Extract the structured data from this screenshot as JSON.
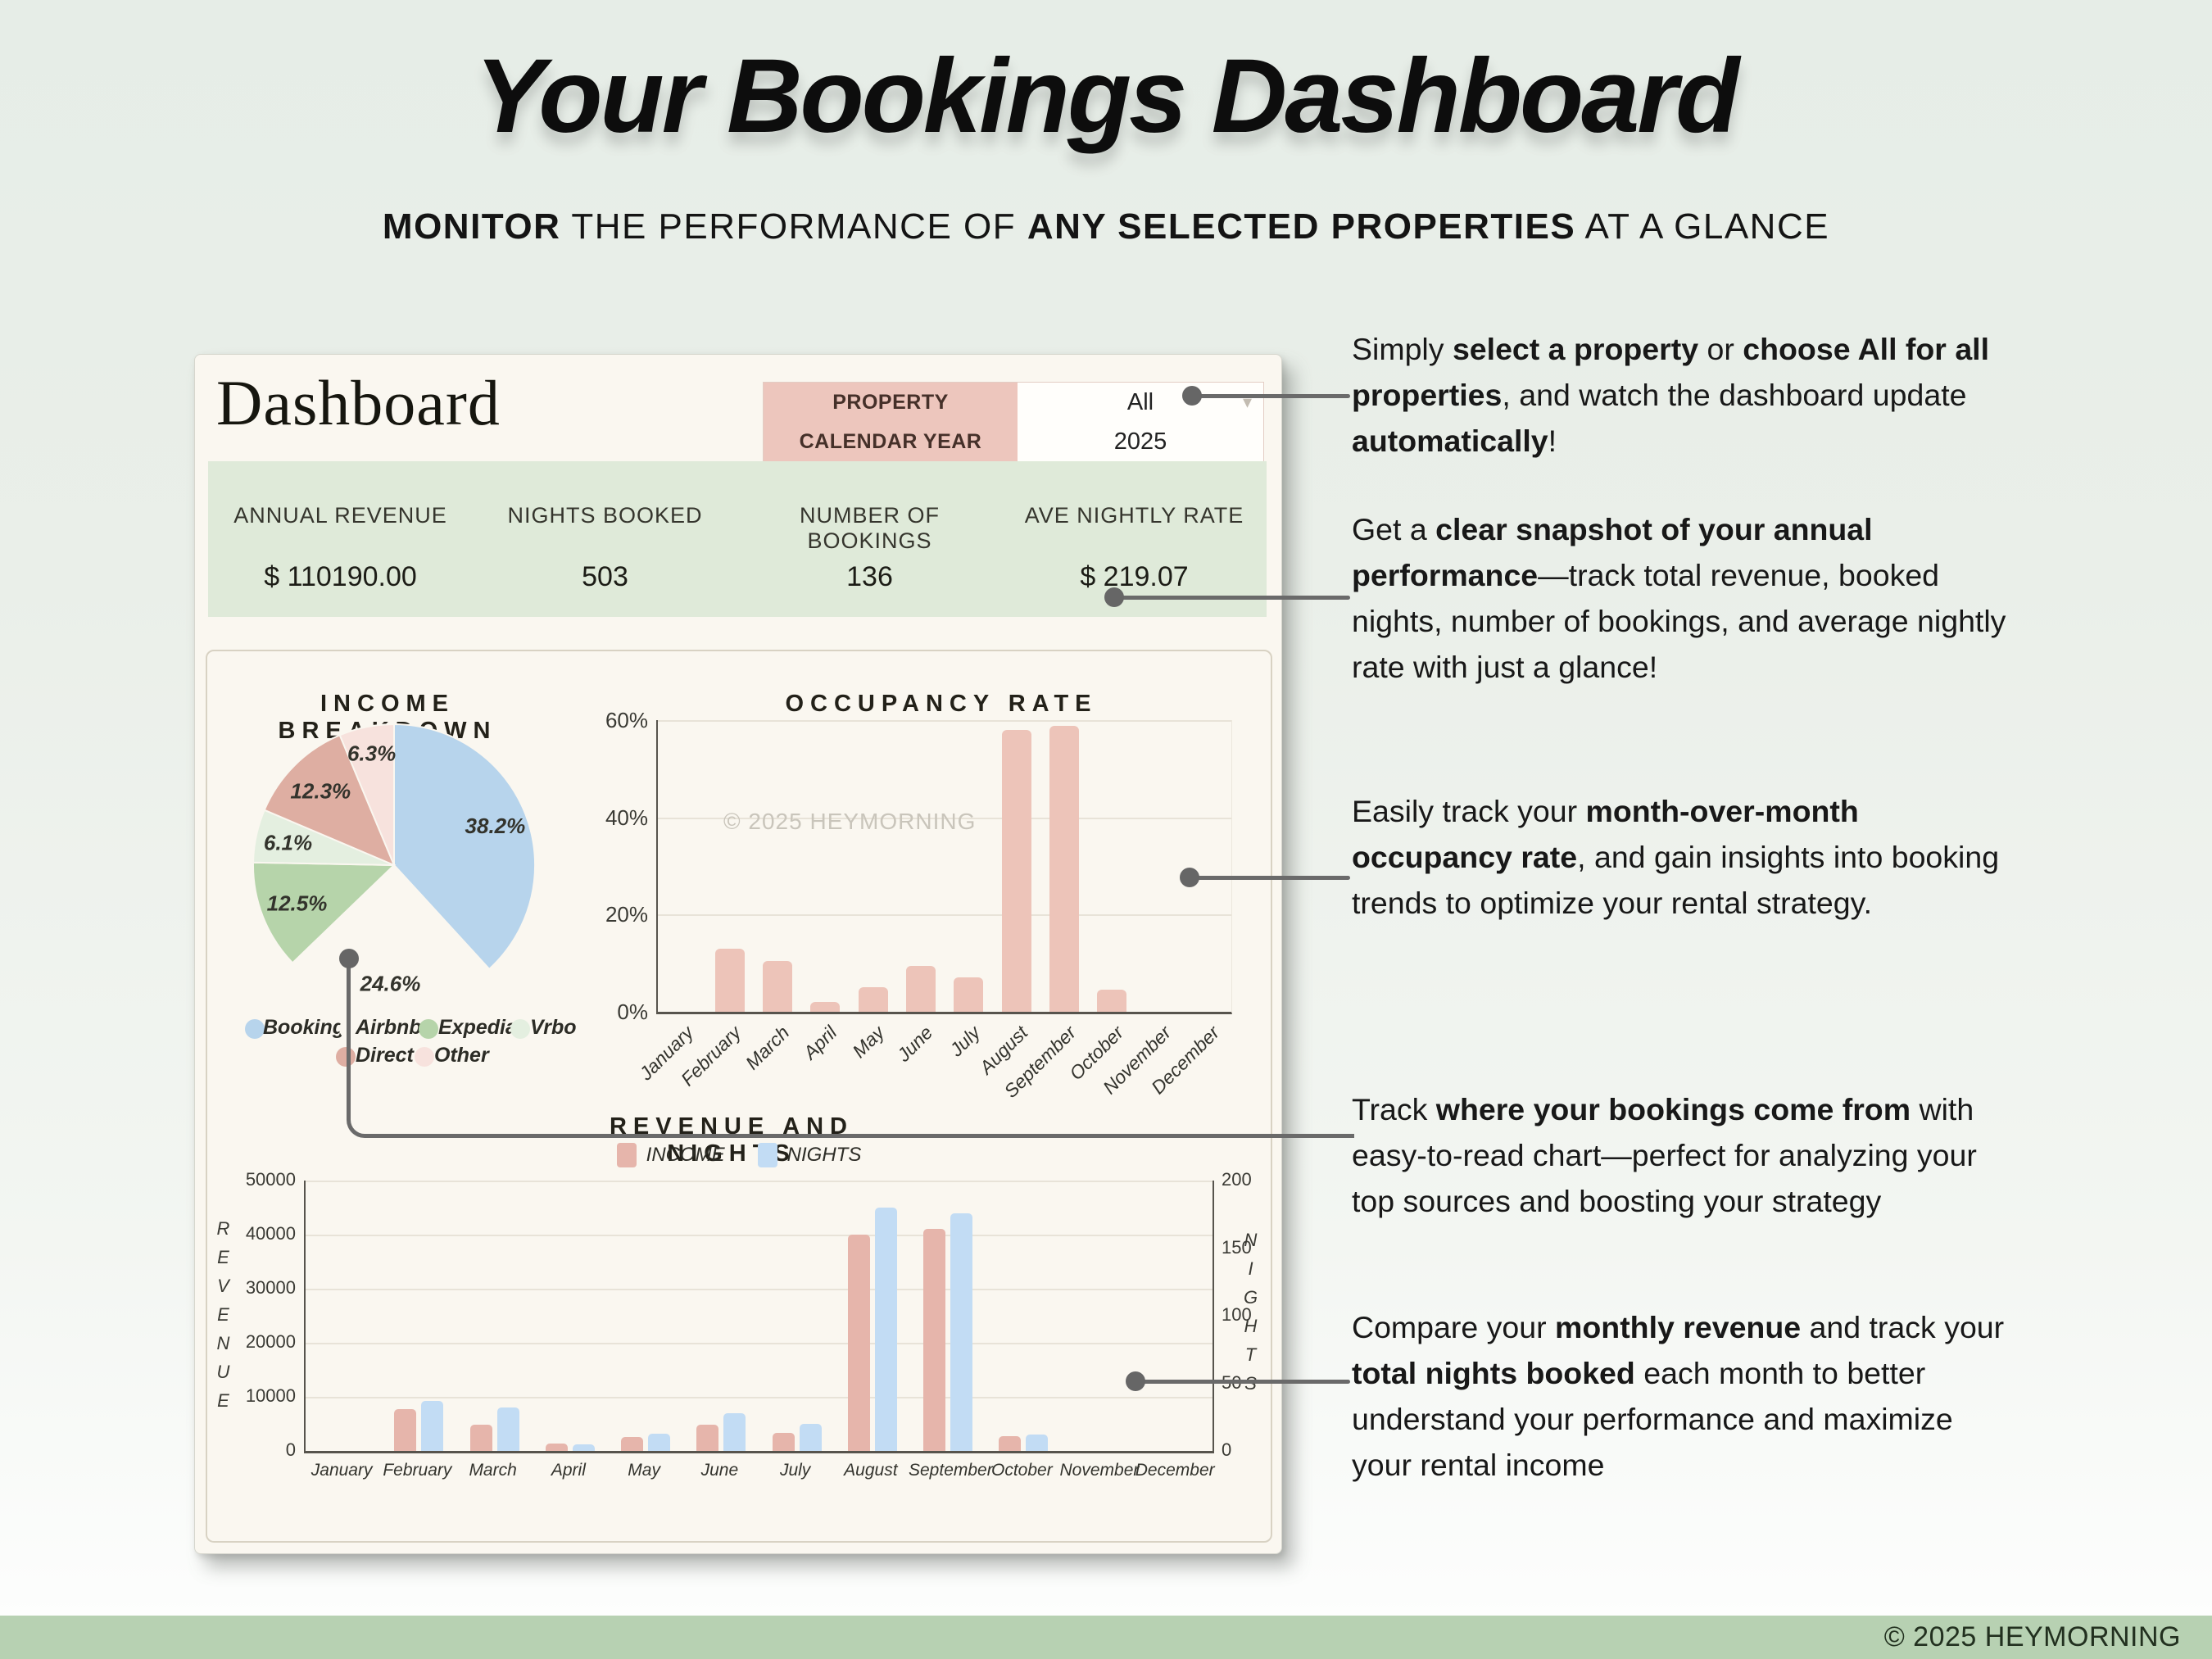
{
  "page": {
    "title": "Your Bookings Dashboard",
    "subtitle_segments": [
      {
        "t": "MONITOR",
        "b": true
      },
      {
        "t": " THE PERFORMANCE OF ",
        "b": false
      },
      {
        "t": "ANY SELECTED PROPERTIES",
        "b": true
      },
      {
        "t": " AT A GLANCE",
        "b": false
      }
    ],
    "footer": "© 2025 HEYMORNING"
  },
  "dashboard": {
    "heading": "Dashboard",
    "selector": {
      "rows": [
        {
          "label": "PROPERTY",
          "value": "All"
        },
        {
          "label": "CALENDAR YEAR",
          "value": "2025"
        }
      ]
    },
    "stats": [
      {
        "label": "ANNUAL REVENUE",
        "value": "$ 110190.00"
      },
      {
        "label": "NIGHTS BOOKED",
        "value": "503"
      },
      {
        "label": "NUMBER OF BOOKINGS",
        "value": "136"
      },
      {
        "label": "AVE NIGHTLY RATE",
        "value": "$ 219.07"
      }
    ],
    "watermark": "© 2025 HEYMORNING"
  },
  "chart_data": [
    {
      "type": "pie",
      "title": "INCOME BREAKDOWN",
      "slices": [
        {
          "label": "Booking",
          "pct": 38.2,
          "color": "#b7d4ec",
          "label_r": 0.77
        },
        {
          "label": "Airbnb",
          "pct": 24.6,
          "color": "#faf7f0",
          "label_r": 0.84
        },
        {
          "label": "Expedia",
          "pct": 12.5,
          "color": "#b6d4aa",
          "label_r": 0.74
        },
        {
          "label": "Vrbo",
          "pct": 6.1,
          "color": "#e4efe0",
          "label_r": 0.77
        },
        {
          "label": "Direct",
          "pct": 12.3,
          "color": "#deae a2",
          "label_r": 0.74
        },
        {
          "label": "Other",
          "pct": 6.3,
          "color": "#f7e2dd",
          "label_r": 0.81
        }
      ],
      "legend_position": "bottom"
    },
    {
      "type": "bar",
      "title": "OCCUPANCY RATE",
      "categories": [
        "January",
        "February",
        "March",
        "April",
        "May",
        "June",
        "July",
        "August",
        "September",
        "October",
        "November",
        "December"
      ],
      "values": [
        0,
        13,
        10.5,
        2,
        5,
        9.5,
        7,
        58,
        58.8,
        4.5,
        0,
        0
      ],
      "ylim": [
        0,
        60
      ],
      "yticks": [
        0,
        20,
        40,
        60
      ],
      "ytick_suffix": "%",
      "bar_color": "#edc4b9",
      "grid": true
    },
    {
      "type": "bar",
      "title": "REVENUE AND NIGHTS",
      "categories": [
        "January",
        "February",
        "March",
        "April",
        "May",
        "June",
        "July",
        "August",
        "September",
        "October",
        "November",
        "December"
      ],
      "series": [
        {
          "name": "INCOME",
          "color": "#e6b5ab",
          "axis": "left",
          "values": [
            0,
            7800,
            4800,
            1300,
            2600,
            4800,
            3400,
            40000,
            41000,
            2700,
            0,
            0
          ]
        },
        {
          "name": "NIGHTS",
          "color": "#c2dcf4",
          "axis": "right",
          "values": [
            0,
            37,
            32,
            5,
            13,
            28,
            20,
            180,
            176,
            12,
            0,
            0
          ]
        }
      ],
      "left_axis": {
        "label": "REVENUE",
        "ticks": [
          0,
          10000,
          20000,
          30000,
          40000,
          50000
        ],
        "max": 50000
      },
      "right_axis": {
        "label": "NIGHTS",
        "ticks": [
          0,
          50,
          100,
          150,
          200
        ],
        "max": 200
      },
      "legend_position": "top",
      "grid": true
    }
  ],
  "callouts": [
    {
      "segments": [
        {
          "t": "Simply ",
          "b": false
        },
        {
          "t": "select a property",
          "b": true
        },
        {
          "t": " or ",
          "b": false
        },
        {
          "t": "choose All for all properties",
          "b": true
        },
        {
          "t": ", and watch the dashboard update ",
          "b": false
        },
        {
          "t": "automatically",
          "b": true
        },
        {
          "t": "!",
          "b": false
        }
      ]
    },
    {
      "segments": [
        {
          "t": "Get a ",
          "b": false
        },
        {
          "t": "clear snapshot of your annual performance",
          "b": true
        },
        {
          "t": "—track total revenue, booked nights, number of bookings, and average nightly rate with just a glance!",
          "b": false
        }
      ]
    },
    {
      "segments": [
        {
          "t": "Easily track your ",
          "b": false
        },
        {
          "t": "month-over-month occupancy rate",
          "b": true
        },
        {
          "t": ", and gain insights into booking trends to optimize your rental strategy.",
          "b": false
        }
      ]
    },
    {
      "segments": [
        {
          "t": "Track ",
          "b": false
        },
        {
          "t": "where your bookings come from",
          "b": true
        },
        {
          "t": " with easy-to-read chart—perfect for analyzing your top sources and boosting your strategy",
          "b": false
        }
      ]
    },
    {
      "segments": [
        {
          "t": "Compare your ",
          "b": false
        },
        {
          "t": "monthly revenue",
          "b": true
        },
        {
          "t": " and track your ",
          "b": false
        },
        {
          "t": "total nights booked",
          "b": true
        },
        {
          "t": " each month to better understand your performance and maximize your rental income",
          "b": false
        }
      ]
    }
  ],
  "colors": {
    "accent_pink": "#edc6bd",
    "stats_green": "#dfead9",
    "footer_green": "#b7d1b2",
    "card_cream": "#faf7f0",
    "connector_gray": "#6a6a6a"
  }
}
